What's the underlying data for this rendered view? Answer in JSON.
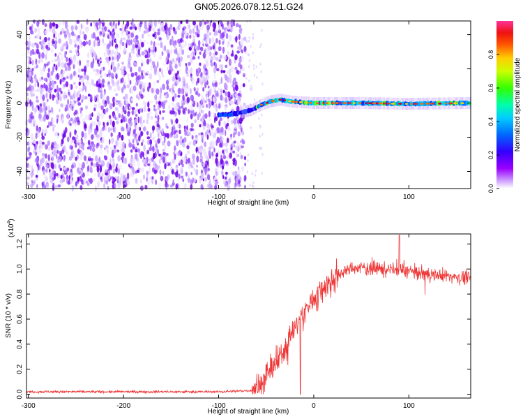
{
  "title": "GN05.2026.078.12.51.G24",
  "chart_data": [
    {
      "type": "heatmap",
      "xlabel": "Height of straight line (km)",
      "ylabel": "Frequency (Hz)",
      "xlim": [
        -302,
        165
      ],
      "ylim": [
        -50,
        48
      ],
      "x_ticks": [
        -300,
        -200,
        -100,
        0,
        100
      ],
      "y_ticks": [
        -40,
        -20,
        0,
        20,
        40
      ],
      "colorbar": {
        "label": "Normalized spectral amplitude",
        "range": [
          0,
          1
        ],
        "ticks": [
          0.0,
          0.2,
          0.4,
          0.6,
          0.8
        ]
      },
      "noise_region_x": [
        -302,
        -72
      ],
      "signal_track": [
        {
          "x": -100,
          "y": -7
        },
        {
          "x": -80,
          "y": -6
        },
        {
          "x": -65,
          "y": -4
        },
        {
          "x": -55,
          "y": -1
        },
        {
          "x": -45,
          "y": 1
        },
        {
          "x": -35,
          "y": 2
        },
        {
          "x": -25,
          "y": 1
        },
        {
          "x": -15,
          "y": 0.5
        },
        {
          "x": 0,
          "y": 0
        },
        {
          "x": 50,
          "y": 0
        },
        {
          "x": 100,
          "y": -0.5
        },
        {
          "x": 165,
          "y": 0
        }
      ]
    },
    {
      "type": "line",
      "xlabel": "Height of straight line (km)",
      "ylabel": "SNR (10 * v/v)",
      "y_exponent_label": "(x10",
      "y_exponent": "4",
      "xlim": [
        -302,
        165
      ],
      "ylim": [
        -0.03,
        1.28
      ],
      "x_ticks": [
        -300,
        -200,
        -100,
        0,
        100
      ],
      "y_ticks": [
        "0.0",
        "0.2",
        "0.4",
        "0.6",
        "0.8",
        "1.0",
        "1.2"
      ],
      "color": "#ee3333",
      "series_envelope": [
        {
          "x": -302,
          "y": 0.02
        },
        {
          "x": -100,
          "y": 0.02
        },
        {
          "x": -65,
          "y": 0.03
        },
        {
          "x": -55,
          "y": 0.08
        },
        {
          "x": -45,
          "y": 0.2
        },
        {
          "x": -35,
          "y": 0.3
        },
        {
          "x": -25,
          "y": 0.45
        },
        {
          "x": -15,
          "y": 0.6
        },
        {
          "x": -5,
          "y": 0.7
        },
        {
          "x": 5,
          "y": 0.8
        },
        {
          "x": 15,
          "y": 0.88
        },
        {
          "x": 25,
          "y": 0.95
        },
        {
          "x": 35,
          "y": 0.99
        },
        {
          "x": 50,
          "y": 1.01
        },
        {
          "x": 75,
          "y": 1.0
        },
        {
          "x": 100,
          "y": 0.98
        },
        {
          "x": 130,
          "y": 0.95
        },
        {
          "x": 165,
          "y": 0.93
        }
      ]
    }
  ]
}
